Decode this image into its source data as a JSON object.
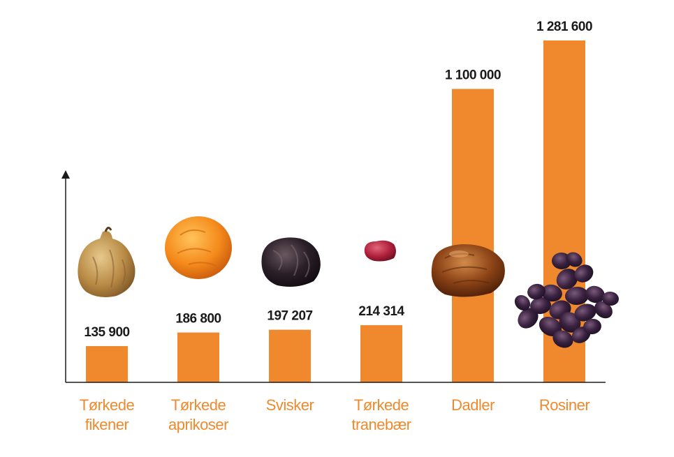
{
  "chart_data": {
    "type": "bar",
    "categories": [
      [
        "Tørkede",
        "fikener"
      ],
      [
        "Tørkede",
        "aprikoser"
      ],
      [
        "Svisker"
      ],
      [
        "Tørkede",
        "tranebær"
      ],
      [
        "Dadler"
      ],
      [
        "Rosiner"
      ]
    ],
    "values": [
      135900,
      186800,
      197207,
      214314,
      1100000,
      1281600
    ],
    "value_labels": [
      "135 900",
      "186 800",
      "197 207",
      "214 314",
      "1 100 000",
      "1 281 600"
    ],
    "icons": [
      "dried-fig-icon",
      "dried-apricot-icon",
      "prune-icon",
      "dried-cranberry-icon",
      "date-icon",
      "raisins-icon"
    ],
    "title": "",
    "xlabel": "",
    "ylabel": "",
    "ylim": [
      0,
      1281600
    ],
    "grid": false,
    "legend": "none",
    "colors": {
      "bar": "#f0892e",
      "category_text": "#ee8a2d",
      "value_text": "#1a1a1a",
      "axis": "#1a1a1a"
    }
  }
}
